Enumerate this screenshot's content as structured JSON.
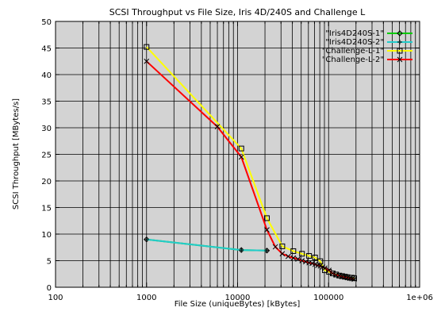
{
  "chart_data": {
    "type": "line",
    "title": "SCSI Throughput vs File Size, Iris 4D/240S and Challenge L",
    "xlabel": "File Size (uniqueBytes) [kBytes]",
    "ylabel": "SCSI Throughput [MBytes/s]",
    "xscale": "log",
    "xlim": [
      100,
      1000000
    ],
    "ylim": [
      0,
      50
    ],
    "xticks": [
      100,
      1000,
      10000,
      100000,
      1000000
    ],
    "xtick_labels": [
      "100",
      "1000",
      "10000",
      "100000",
      "1e+06"
    ],
    "yticks": [
      0,
      5,
      10,
      15,
      20,
      25,
      30,
      35,
      40,
      45,
      50
    ],
    "ytick_labels": [
      "0",
      "5",
      "10",
      "15",
      "20",
      "25",
      "30",
      "35",
      "40",
      "45",
      "50"
    ],
    "grid": true,
    "legend_position": "top-right",
    "plot_background": "#d3d3d3",
    "series": [
      {
        "name": "\"Iris4D240S-1\"",
        "color": "#00cc00",
        "marker": "diamond",
        "x": [
          1000,
          11000,
          21000
        ],
        "y": [
          9.0,
          7.0,
          6.9
        ]
      },
      {
        "name": "\"Iris4D240S-2\"",
        "color": "#22cccc",
        "marker": "plus",
        "x": [
          1000,
          11000,
          21000
        ],
        "y": [
          9.0,
          7.0,
          6.9
        ]
      },
      {
        "name": "\"Challenge-L-1\"",
        "color": "#ffff00",
        "marker": "square",
        "x": [
          1000,
          11000,
          21000,
          31000,
          41000,
          51000,
          61000,
          71000,
          81000,
          91000,
          101000,
          111000,
          121000,
          131000,
          141000,
          151000,
          161000,
          171000,
          181000,
          191000
        ],
        "y": [
          45.2,
          26.1,
          13.0,
          7.7,
          6.8,
          6.3,
          5.9,
          5.6,
          4.9,
          3.2,
          2.9,
          2.6,
          2.4,
          2.2,
          2.1,
          2.0,
          1.9,
          1.8,
          1.8,
          1.7
        ]
      },
      {
        "name": "\"Challenge-L-2\"",
        "color": "#ff0000",
        "marker": "cross",
        "x": [
          1000,
          6000,
          11000,
          21000,
          26000,
          31000,
          36000,
          41000,
          46000,
          51000,
          56000,
          61000,
          66000,
          71000,
          76000,
          81000,
          86000,
          91000,
          101000,
          111000,
          121000,
          131000,
          141000,
          151000,
          161000,
          171000,
          181000,
          191000
        ],
        "y": [
          42.5,
          30.2,
          24.5,
          10.8,
          7.6,
          6.3,
          5.8,
          5.5,
          5.3,
          5.0,
          4.8,
          4.6,
          4.5,
          4.3,
          4.1,
          4.0,
          3.8,
          3.6,
          3.2,
          2.6,
          2.3,
          2.2,
          2.0,
          1.9,
          1.8,
          1.7,
          1.6,
          1.5
        ]
      }
    ]
  }
}
